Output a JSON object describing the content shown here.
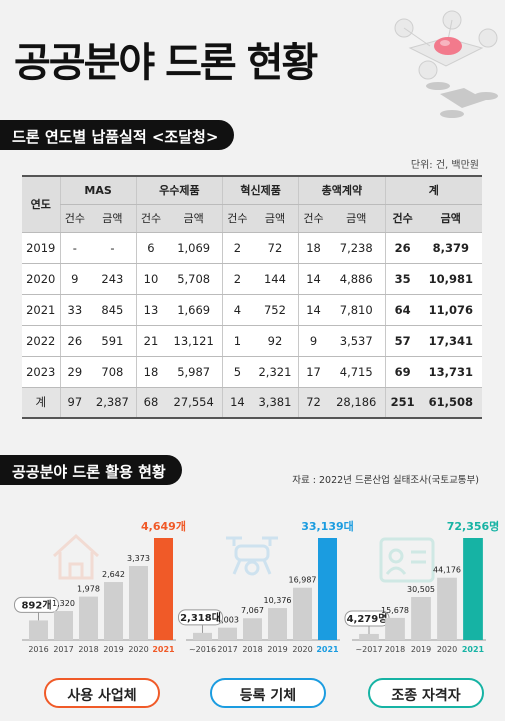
{
  "title": "공공분야 드론 현황",
  "section1": {
    "heading": "드론 연도별 납품실적 <조달청>",
    "unit": "단위: 건, 백만원",
    "year_header": "연도",
    "groups": [
      "MAS",
      "우수제품",
      "혁신제품",
      "총액계약",
      "계"
    ],
    "sub_count": "건수",
    "sub_amount": "금액",
    "rows": [
      [
        "2019",
        "-",
        "-",
        "6",
        "1,069",
        "2",
        "72",
        "18",
        "7,238",
        "26",
        "8,379"
      ],
      [
        "2020",
        "9",
        "243",
        "10",
        "5,708",
        "2",
        "144",
        "14",
        "4,886",
        "35",
        "10,981"
      ],
      [
        "2021",
        "33",
        "845",
        "13",
        "1,669",
        "4",
        "752",
        "14",
        "7,810",
        "64",
        "11,076"
      ],
      [
        "2022",
        "26",
        "591",
        "21",
        "13,121",
        "1",
        "92",
        "9",
        "3,537",
        "57",
        "17,341"
      ],
      [
        "2023",
        "29",
        "708",
        "18",
        "5,987",
        "5",
        "2,321",
        "17",
        "4,715",
        "69",
        "13,731"
      ],
      [
        "계",
        "97",
        "2,387",
        "68",
        "27,554",
        "14",
        "3,381",
        "72",
        "28,186",
        "251",
        "61,508"
      ]
    ]
  },
  "section2": {
    "heading": "공공분야 드론 활용 현황",
    "source": "자료 : 2022년 드론산업 실태조사(국토교통부)"
  },
  "colors": {
    "gray_bar": "#cfcfcf",
    "orange": "#f05a28",
    "blue": "#1b9ce0",
    "teal": "#16b3a4"
  },
  "chart_data": [
    {
      "type": "bar",
      "title": "사용 사업체",
      "categories": [
        "2016",
        "2017",
        "2018",
        "2019",
        "2020",
        "2021"
      ],
      "values": [
        892,
        1320,
        1978,
        2642,
        3373,
        4649
      ],
      "labels": [
        "892개",
        "1,320",
        "1,978",
        "2,642",
        "3,373",
        "4,649개"
      ],
      "highlight_color": "#f05a28",
      "ylim": [
        0,
        4649
      ]
    },
    {
      "type": "bar",
      "title": "등록 기체",
      "categories": [
        "~2016",
        "2017",
        "2018",
        "2019",
        "2020",
        "2021"
      ],
      "values": [
        2318,
        4003,
        7067,
        10376,
        16987,
        33139
      ],
      "labels": [
        "2,318대",
        "4,003",
        "7,067",
        "10,376",
        "16,987",
        "33,139대"
      ],
      "highlight_color": "#1b9ce0",
      "ylim": [
        0,
        33139
      ]
    },
    {
      "type": "bar",
      "title": "조종 자격자",
      "categories": [
        "~2017",
        "2018",
        "2019",
        "2020",
        "2021"
      ],
      "values": [
        4279,
        15678,
        30505,
        44176,
        72356
      ],
      "labels": [
        "4,279명",
        "15,678",
        "30,505",
        "44,176",
        "72,356명"
      ],
      "highlight_color": "#16b3a4",
      "ylim": [
        0,
        72356
      ]
    }
  ]
}
